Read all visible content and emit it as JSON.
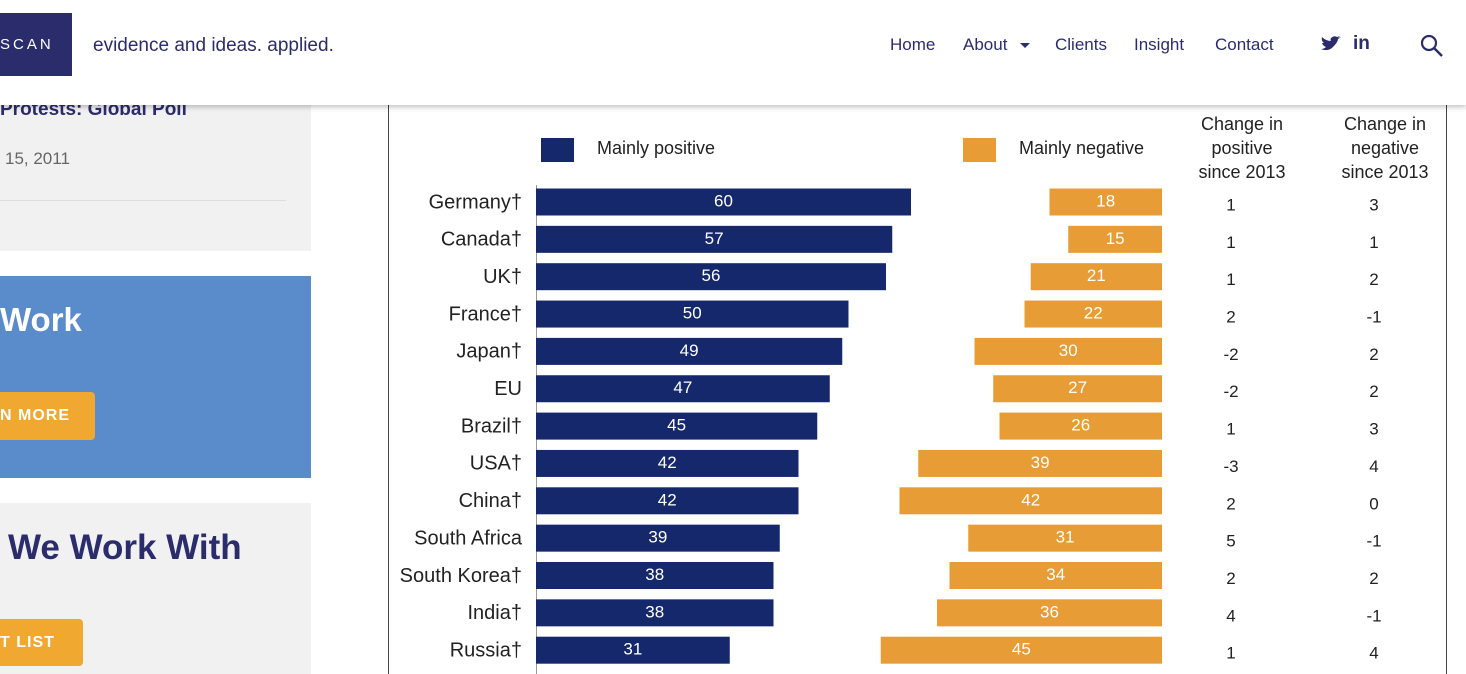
{
  "header": {
    "logo": "SCAN",
    "tagline": "evidence and ideas. applied.",
    "nav": [
      "Home",
      "About",
      "Clients",
      "Insight",
      "Contact"
    ],
    "linkedin": "in"
  },
  "sidebar": {
    "post_title": "Protests: Global Poll",
    "post_date": "15, 2011",
    "promo_title": "Work",
    "promo_button": "N MORE",
    "clients_title": "We Work With",
    "clients_button": "T LIST"
  },
  "chart_data": {
    "type": "bar",
    "orientation": "horizontal-diverging",
    "categories": [
      "Germany†",
      "Canada†",
      "UK†",
      "France†",
      "Japan†",
      "EU",
      "Brazil†",
      "USA†",
      "China†",
      "South Africa",
      "South Korea†",
      "India†",
      "Russia†"
    ],
    "series": [
      {
        "name": "Mainly positive",
        "color": "#15286b",
        "values": [
          60,
          57,
          56,
          50,
          49,
          47,
          45,
          42,
          42,
          39,
          38,
          38,
          31
        ]
      },
      {
        "name": "Mainly negative",
        "color": "#e89c35",
        "values": [
          18,
          15,
          21,
          22,
          30,
          27,
          26,
          39,
          42,
          31,
          34,
          36,
          45
        ]
      }
    ],
    "columns": [
      {
        "header": [
          "Change in",
          "positive",
          "since 2013"
        ],
        "values": [
          1,
          1,
          1,
          2,
          -2,
          -2,
          1,
          -3,
          2,
          5,
          2,
          4,
          1
        ]
      },
      {
        "header": [
          "Change in",
          "negative",
          "since 2013"
        ],
        "values": [
          3,
          1,
          2,
          -1,
          2,
          2,
          3,
          4,
          0,
          -1,
          2,
          -1,
          4
        ]
      }
    ]
  }
}
